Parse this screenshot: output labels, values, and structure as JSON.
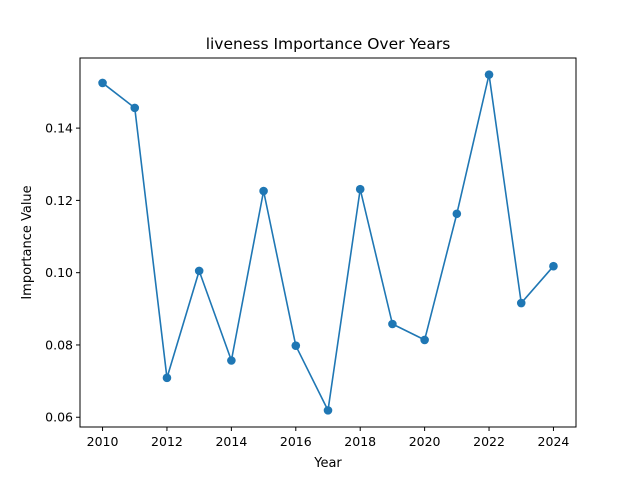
{
  "chart_data": {
    "type": "line",
    "title": "liveness Importance Over Years",
    "xlabel": "Year",
    "ylabel": "Importance Value",
    "x": [
      2010,
      2011,
      2012,
      2013,
      2014,
      2015,
      2016,
      2017,
      2018,
      2019,
      2020,
      2021,
      2022,
      2023,
      2024
    ],
    "series": [
      {
        "values": [
          0.1525,
          0.1456,
          0.0709,
          0.1005,
          0.0757,
          0.1226,
          0.0798,
          0.0619,
          0.1231,
          0.0858,
          0.0814,
          0.1163,
          0.1548,
          0.0916,
          0.1018
        ]
      }
    ],
    "xlim": [
      2009.3,
      2024.7
    ],
    "ylim": [
      0.0573,
      0.1594
    ],
    "xticks": [
      "2010",
      "2012",
      "2014",
      "2016",
      "2018",
      "2020",
      "2022",
      "2024"
    ],
    "yticks": [
      "0.06",
      "0.08",
      "0.10",
      "0.12",
      "0.14"
    ],
    "grid": false,
    "colors": {
      "line": "#1f77b4",
      "marker": "#1f77b4"
    }
  }
}
